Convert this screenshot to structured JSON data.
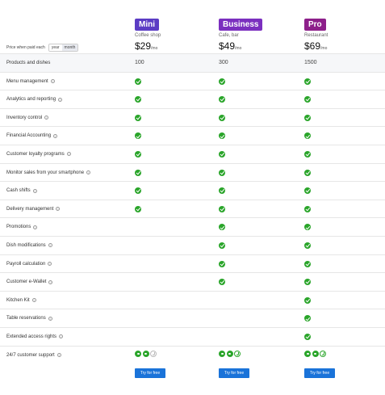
{
  "plans": [
    {
      "name": "Mini",
      "subtitle": "Coffee shop",
      "price": "$29",
      "per": "/mo"
    },
    {
      "name": "Business",
      "subtitle": "Cafe, bar",
      "price": "$49",
      "per": "/mo"
    },
    {
      "name": "Pro",
      "subtitle": "Restaurant",
      "price": "$69",
      "per": "/mo"
    }
  ],
  "billing": {
    "label": "Price when paid each",
    "options": [
      "year",
      "month"
    ],
    "selected": "month"
  },
  "products_row": {
    "label": "Products and dishes",
    "values": [
      "100",
      "300",
      "1500"
    ]
  },
  "features": [
    {
      "label": "Menu management",
      "mini": true,
      "business": true,
      "pro": true
    },
    {
      "label": "Analytics and reporting",
      "mini": true,
      "business": true,
      "pro": true
    },
    {
      "label": "Inventory control",
      "mini": true,
      "business": true,
      "pro": true
    },
    {
      "label": "Financial Accounting",
      "mini": true,
      "business": true,
      "pro": true
    },
    {
      "label": "Customer loyalty programs",
      "mini": true,
      "business": true,
      "pro": true
    },
    {
      "label": "Monitor sales from your smartphone",
      "mini": true,
      "business": true,
      "pro": true
    },
    {
      "label": "Cash shifts",
      "mini": true,
      "business": true,
      "pro": true
    },
    {
      "label": "Delivery management",
      "mini": true,
      "business": true,
      "pro": true
    },
    {
      "label": "Promotions",
      "mini": false,
      "business": true,
      "pro": true
    },
    {
      "label": "Dish modifications",
      "mini": false,
      "business": true,
      "pro": true
    },
    {
      "label": "Payroll calculation",
      "mini": false,
      "business": true,
      "pro": true
    },
    {
      "label": "Customer e-Wallet",
      "mini": false,
      "business": true,
      "pro": true
    },
    {
      "label": "Kitchen Kit",
      "mini": false,
      "business": false,
      "pro": true
    },
    {
      "label": "Table reservations",
      "mini": false,
      "business": false,
      "pro": true
    },
    {
      "label": "Extended access rights",
      "mini": false,
      "business": false,
      "pro": true
    }
  ],
  "support_row": {
    "label": "24/7 customer support",
    "icons": [
      "chat-icon",
      "messenger-icon",
      "phone-icon"
    ],
    "mini": [
      true,
      true,
      false
    ],
    "business": [
      true,
      true,
      true
    ],
    "pro": [
      true,
      true,
      true
    ]
  },
  "cta_label": "Try for free",
  "colors": {
    "check": "#2aa52a",
    "cta": "#1a73d9",
    "mini": "#5b3cc4",
    "business": "#7b2fbf",
    "pro": "#8d1f8a"
  }
}
